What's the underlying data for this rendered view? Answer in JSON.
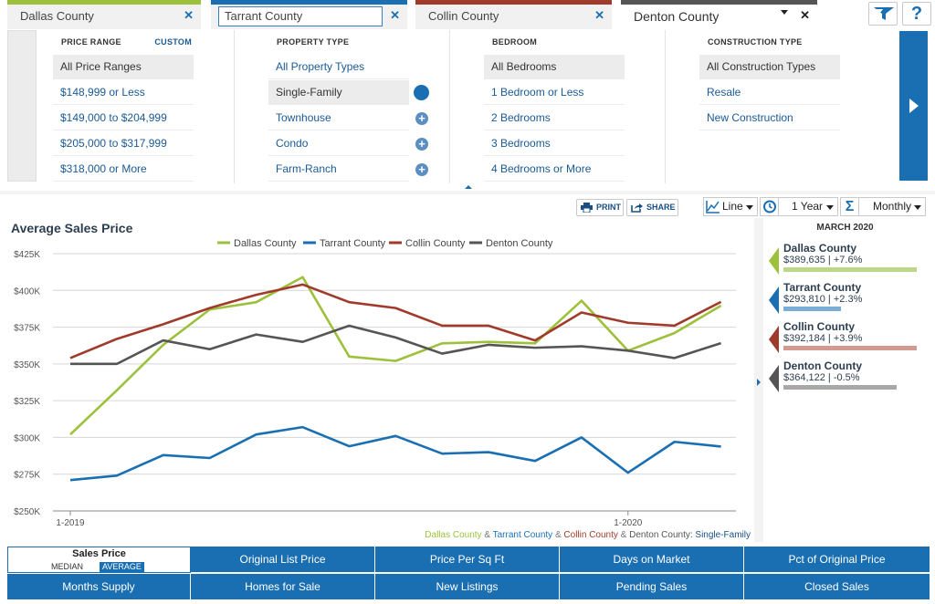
{
  "tabs": [
    {
      "label": "Dallas County",
      "color": "#9dc13c"
    },
    {
      "label": "Tarrant County",
      "color": "#1a6fb3"
    },
    {
      "label": "Collin County",
      "color": "#a03b2b"
    },
    {
      "label": "Denton County",
      "color": "#555555"
    }
  ],
  "toolbar_icons": {
    "map": "map-filter-icon",
    "help": "?"
  },
  "filters": {
    "price_range": {
      "heading": "PRICE RANGE",
      "custom": "CUSTOM",
      "options": [
        "All Price Ranges",
        "$148,999 or Less",
        "$149,000 to $204,999",
        "$205,000 to $317,999",
        "$318,000 or More"
      ]
    },
    "property_type": {
      "heading": "PROPERTY TYPE",
      "options": [
        "All Property Types",
        "Single-Family",
        "Townhouse",
        "Condo",
        "Farm-Ranch"
      ]
    },
    "bedroom": {
      "heading": "BEDROOM",
      "options": [
        "All Bedrooms",
        "1 Bedroom or Less",
        "2 Bedrooms",
        "3 Bedrooms",
        "4 Bedrooms or More"
      ]
    },
    "construction_type": {
      "heading": "CONSTRUCTION TYPE",
      "options": [
        "All Construction Types",
        "Resale",
        "New Construction"
      ]
    }
  },
  "chart_toolbar": {
    "print": "PRINT",
    "share": "SHARE",
    "chart_type": "Line",
    "period": "1 Year",
    "interval": "Monthly"
  },
  "chart_data": {
    "type": "line",
    "title": "Average Sales Price",
    "x": [
      "1-2019",
      "2-2019",
      "3-2019",
      "4-2019",
      "5-2019",
      "6-2019",
      "7-2019",
      "8-2019",
      "9-2019",
      "10-2019",
      "11-2019",
      "12-2019",
      "1-2020",
      "2-2020",
      "3-2020"
    ],
    "x_tick_labels": [
      {
        "index": 0,
        "label": "1-2019"
      },
      {
        "index": 12,
        "label": "1-2020"
      }
    ],
    "y_ticks": [
      "$250K",
      "$275K",
      "$300K",
      "$325K",
      "$350K",
      "$375K",
      "$400K",
      "$425K"
    ],
    "ylim": [
      250000,
      425000
    ],
    "grid": true,
    "legend_position": "top",
    "series": [
      {
        "name": "Dallas County",
        "color": "#9dc13c",
        "values": [
          302000,
          332000,
          363000,
          387000,
          392000,
          409000,
          355000,
          352000,
          364000,
          365000,
          364000,
          393000,
          359000,
          371000,
          389635
        ]
      },
      {
        "name": "Tarrant County",
        "color": "#1a6fb3",
        "values": [
          271000,
          274000,
          288000,
          286000,
          302000,
          307000,
          294000,
          301000,
          289000,
          290000,
          284000,
          300000,
          276000,
          297000,
          293810
        ]
      },
      {
        "name": "Collin County",
        "color": "#a03b2b",
        "values": [
          354000,
          367000,
          377000,
          388000,
          397000,
          404000,
          392000,
          388000,
          376000,
          376000,
          366000,
          385000,
          378000,
          376000,
          392184
        ]
      },
      {
        "name": "Denton County",
        "color": "#555555",
        "values": [
          350000,
          350000,
          366000,
          360000,
          370000,
          365000,
          376000,
          368000,
          357000,
          363000,
          361000,
          362000,
          359000,
          354000,
          364122
        ]
      }
    ],
    "footnote": {
      "counties": [
        "Dallas County",
        "Tarrant County",
        "Collin County",
        "Denton County"
      ],
      "separator": " & ",
      "suffix": ": Single-Family"
    }
  },
  "summary": {
    "date": "MARCH 2020",
    "items": [
      {
        "name": "Dallas County",
        "value": "$389,635 | +7.6%",
        "color": "#9dc13c",
        "bar_color": "#bcd98a",
        "bar_fraction": 1.0
      },
      {
        "name": "Tarrant County",
        "value": "$293,810 | +2.3%",
        "color": "#1a6fb3",
        "bar_color": "#7aaed6",
        "bar_fraction": 0.43
      },
      {
        "name": "Collin County",
        "value": "$392,184 | +3.9%",
        "color": "#a03b2b",
        "bar_color": "#d39a92",
        "bar_fraction": 1.0
      },
      {
        "name": "Denton County",
        "value": "$364,122 | -0.5%",
        "color": "#555555",
        "bar_color": "#a8a8a8",
        "bar_fraction": 0.85
      }
    ]
  },
  "metrics": {
    "active": {
      "label": "Sales Price",
      "median": "MEDIAN",
      "average": "AVERAGE"
    },
    "row1": [
      "Original List Price",
      "Price Per Sq Ft",
      "Days on Market",
      "Pct of Original Price"
    ],
    "row2": [
      "Months Supply",
      "Homes for Sale",
      "New Listings",
      "Pending Sales",
      "Closed Sales"
    ]
  }
}
